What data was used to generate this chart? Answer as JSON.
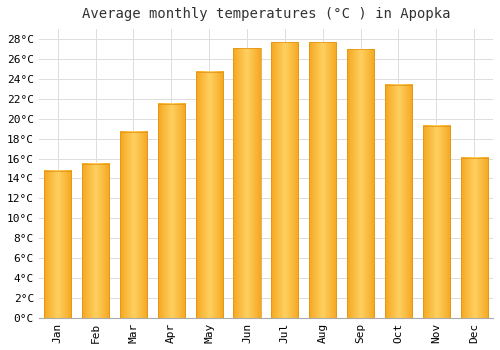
{
  "title": "Average monthly temperatures (°C ) in Apopka",
  "months": [
    "Jan",
    "Feb",
    "Mar",
    "Apr",
    "May",
    "Jun",
    "Jul",
    "Aug",
    "Sep",
    "Oct",
    "Nov",
    "Dec"
  ],
  "values": [
    14.8,
    15.5,
    18.7,
    21.5,
    24.7,
    27.1,
    27.7,
    27.7,
    27.0,
    23.4,
    19.3,
    16.1
  ],
  "bar_color_center": "#FFD060",
  "bar_color_edge": "#F5A623",
  "background_color": "#FFFFFF",
  "plot_bg_color": "#FAFAFA",
  "grid_color": "#DDDDDD",
  "ylim": [
    0,
    29
  ],
  "ytick_step": 2,
  "title_fontsize": 10,
  "tick_fontsize": 8,
  "font_family": "monospace"
}
